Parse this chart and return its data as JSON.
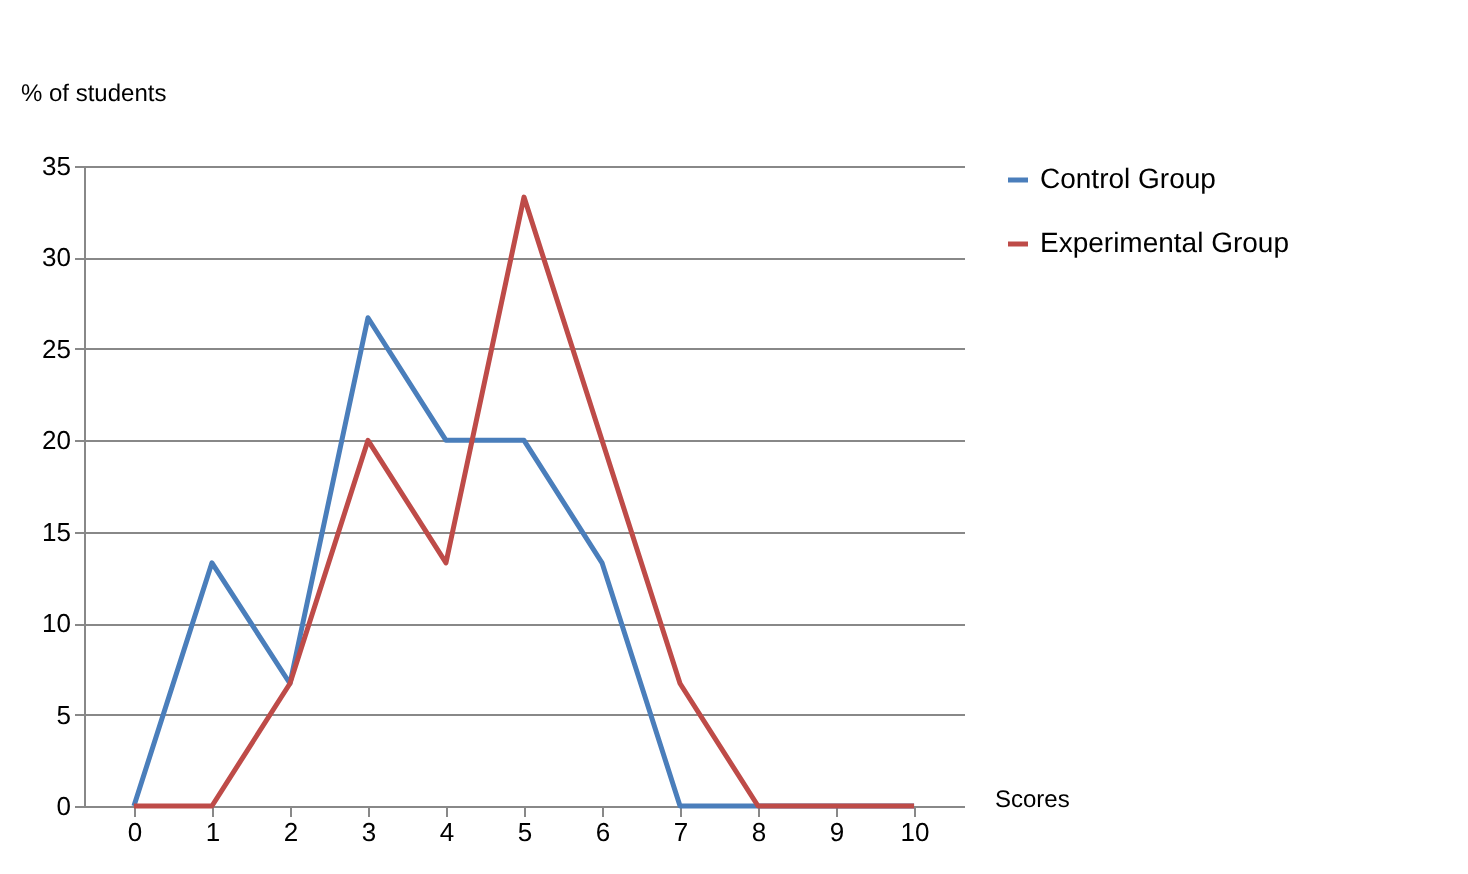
{
  "chart_data": {
    "type": "line",
    "xlabel": "Scores",
    "ylabel": "% of students",
    "categories": [
      "0",
      "1",
      "2",
      "3",
      "4",
      "5",
      "6",
      "7",
      "8",
      "9",
      "10"
    ],
    "series": [
      {
        "name": "Control Group",
        "color": "#4a7ebb",
        "values": [
          0,
          13.3,
          6.7,
          26.7,
          20,
          20,
          13.3,
          0,
          0,
          0,
          0
        ]
      },
      {
        "name": "Experimental Group",
        "color": "#be4b48",
        "values": [
          0,
          0,
          6.7,
          20,
          13.3,
          33.3,
          20,
          6.7,
          0,
          0,
          0
        ]
      }
    ],
    "ylim": [
      0,
      35
    ],
    "yticks": [
      0,
      5,
      10,
      15,
      20,
      25,
      30,
      35
    ],
    "grid": "y",
    "legend": "right"
  }
}
